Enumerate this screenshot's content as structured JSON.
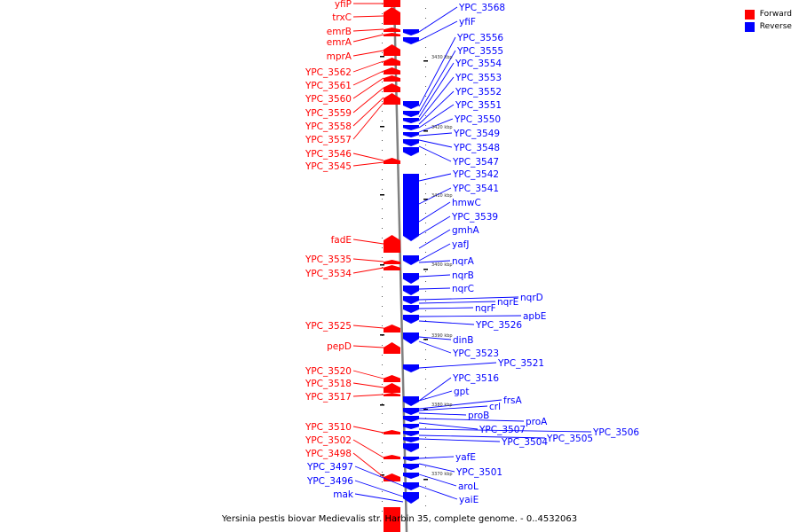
{
  "caption": "Yersinia pestis biovar Medievalis str. Harbin 35, complete genome. - 0..4532063",
  "legend": [
    {
      "label": "Forward",
      "color": "#ff0000"
    },
    {
      "label": "Reverse",
      "color": "#0000ff"
    }
  ],
  "colors": {
    "forward": "#ff0000",
    "reverse": "#0000ff",
    "axis": "#808080"
  },
  "kbp_marks": [
    "3430 kbp",
    "3420 kbp",
    "3410 kbp",
    "3400 kbp",
    "3390 kbp",
    "3380 kbp",
    "3370 kbp"
  ],
  "forward_labels": [
    "yfiP",
    "trxC",
    "emrB",
    "emrA",
    "mprA",
    "YPC_3562",
    "YPC_3561",
    "YPC_3560",
    "YPC_3559",
    "YPC_3558",
    "YPC_3557",
    "YPC_3546",
    "YPC_3545",
    "fadE",
    "YPC_3535",
    "YPC_3534",
    "YPC_3525",
    "pepD",
    "YPC_3520",
    "YPC_3518",
    "YPC_3517",
    "YPC_3510",
    "YPC_3502",
    "YPC_3498"
  ],
  "reverse_labels_left": [
    "YPC_3497",
    "YPC_3496",
    "mak"
  ],
  "reverse_labels": [
    "YPC_3568",
    "yfiF",
    "YPC_3556",
    "YPC_3555",
    "YPC_3554",
    "YPC_3553",
    "YPC_3552",
    "YPC_3551",
    "YPC_3550",
    "YPC_3549",
    "YPC_3548",
    "YPC_3547",
    "YPC_3542",
    "YPC_3541",
    "hmwC",
    "YPC_3539",
    "gmhA",
    "yafJ",
    "nqrA",
    "nqrB",
    "nqrC",
    "nqrD",
    "nqrE",
    "nqrF",
    "apbE",
    "YPC_3526",
    "dinB",
    "YPC_3523",
    "YPC_3521",
    "YPC_3516",
    "gpt",
    "frsA",
    "crl",
    "proB",
    "proA",
    "YPC_3507",
    "YPC_3506",
    "YPC_3505",
    "YPC_3504",
    "yafE",
    "YPC_3501",
    "aroL",
    "yaiE"
  ]
}
